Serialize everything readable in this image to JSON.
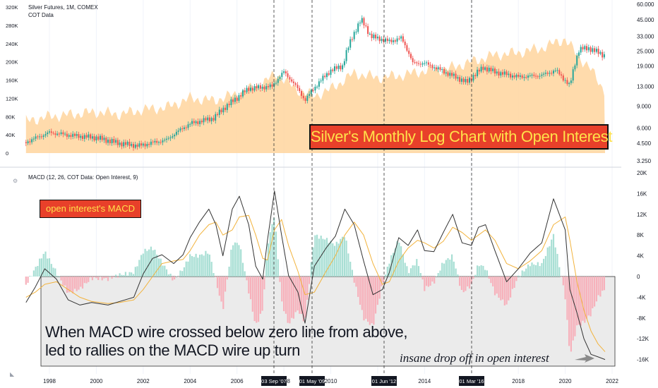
{
  "header": {
    "symbol": "Silver Futures, 1M, COMEX",
    "indicator": "COT Data",
    "macd_label": "MACD (12, 26, COT Data: Open Interest, 9)"
  },
  "annotations": {
    "title_box": "Silver's Monthly Log Chart with Open Interest",
    "macd_box": "open interest's MACD",
    "note_line1": "When MACD wire crossed below zero line from above,",
    "note_line2": "led to rallies on the MACD wire up turn",
    "drop_note": "insane drop off in open interest"
  },
  "chart_data": [
    {
      "type": "area",
      "title": "Silver Futures, 1M, COMEX",
      "series": [
        {
          "name": "COT Data",
          "x": [
            1997.0,
            1998.0,
            1999.0,
            2000.0,
            2001.0,
            2002.0,
            2003.0,
            2004.0,
            2005.0,
            2006.0,
            2007.0,
            2007.7,
            2008.5,
            2009.3,
            2010.0,
            2011.0,
            2012.0,
            2013.0,
            2014.0,
            2015.0,
            2016.0,
            2017.0,
            2018.0,
            2019.0,
            2020.0,
            2020.5,
            2021.0,
            2021.7
          ],
          "values": [
            70000,
            80000,
            85000,
            90000,
            85000,
            95000,
            100000,
            120000,
            115000,
            130000,
            150000,
            175000,
            140000,
            125000,
            140000,
            175000,
            165000,
            170000,
            180000,
            185000,
            200000,
            215000,
            220000,
            230000,
            250000,
            215000,
            190000,
            135000
          ]
        }
      ],
      "yticks_left": [
        "320K",
        "280K",
        "240K",
        "200K",
        "160K",
        "120K",
        "80K",
        "40K",
        "0"
      ],
      "ylim_left": [
        0,
        320000
      ],
      "price_scale": "log",
      "yticks_right": [
        "60.000",
        "45.000",
        "33.000",
        "25.000",
        "19.000",
        "13.000",
        "9.000",
        "6.000",
        "4.500",
        "3.250"
      ],
      "ylim_right": [
        3.25,
        60
      ],
      "price_path": {
        "name": "Silver Futures, 1M, COMEX",
        "x": [
          1997.0,
          1998.0,
          1999.0,
          2000.0,
          2001.0,
          2001.8,
          2003.0,
          2004.0,
          2005.0,
          2006.0,
          2006.5,
          2007.5,
          2008.0,
          2008.9,
          2009.5,
          2010.0,
          2010.5,
          2011.3,
          2011.7,
          2012.5,
          2013.0,
          2013.5,
          2014.0,
          2015.0,
          2015.8,
          2016.5,
          2017.0,
          2018.0,
          2019.0,
          2019.6,
          2020.2,
          2020.6,
          2021.0,
          2021.7
        ],
        "values": [
          4.6,
          5.5,
          5.2,
          5.0,
          4.5,
          4.3,
          4.8,
          6.5,
          7.2,
          10.5,
          12.5,
          13.0,
          17.0,
          10.0,
          14.0,
          17.5,
          19.0,
          45.0,
          33.0,
          30.0,
          32.0,
          20.0,
          20.0,
          16.5,
          14.0,
          18.5,
          17.0,
          15.5,
          16.0,
          17.5,
          13.0,
          26.0,
          26.5,
          23.0
        ]
      },
      "xticks": [
        "1998",
        "2000",
        "2002",
        "2004",
        "2006",
        "2008",
        "2010",
        "2012",
        "2014",
        "2016",
        "2018",
        "2020",
        "2022"
      ]
    },
    {
      "type": "line",
      "title": "MACD (12, 26, COT Data: Open Interest, 9)",
      "ylim": [
        -16000,
        20000
      ],
      "yticks": [
        "20K",
        "16K",
        "12K",
        "8K",
        "4K",
        "0",
        "-4K",
        "-8K",
        "-12K",
        "-16K"
      ],
      "x": [
        1997.0,
        1997.4,
        1997.8,
        1998.3,
        1998.8,
        1999.3,
        1999.8,
        2000.5,
        2001.0,
        2001.6,
        2002.0,
        2002.4,
        2002.8,
        2003.3,
        2003.7,
        2004.0,
        2004.4,
        2004.8,
        2005.1,
        2005.4,
        2005.8,
        2006.1,
        2006.5,
        2006.8,
        2007.1,
        2007.3,
        2007.6,
        2007.9,
        2008.2,
        2008.6,
        2008.9,
        2009.3,
        2009.8,
        2010.2,
        2010.6,
        2011.0,
        2011.4,
        2011.8,
        2012.2,
        2012.5,
        2012.9,
        2013.3,
        2013.7,
        2014.0,
        2014.4,
        2014.8,
        2015.2,
        2015.6,
        2016.0,
        2016.3,
        2016.6,
        2017.0,
        2017.5,
        2018.0,
        2018.5,
        2019.0,
        2019.5,
        2020.0,
        2020.2,
        2020.5,
        2020.8,
        2021.1,
        2021.4,
        2021.7
      ],
      "series": [
        {
          "name": "MACD",
          "values": [
            -5000,
            -2000,
            1500,
            -500,
            -4500,
            -5500,
            -5000,
            -5500,
            -4800,
            -4000,
            500,
            3500,
            4200,
            2500,
            4200,
            7500,
            10500,
            13000,
            10000,
            4000,
            13000,
            15500,
            10000,
            2000,
            -500,
            7000,
            16500,
            8000,
            200,
            -3000,
            -9000,
            2000,
            5500,
            7800,
            13000,
            10000,
            3000,
            -3500,
            -2500,
            800,
            7500,
            6000,
            9000,
            5000,
            4800,
            8500,
            12000,
            6500,
            6000,
            9500,
            10000,
            5000,
            -1000,
            1500,
            4500,
            6500,
            15000,
            9000,
            -2500,
            -7000,
            -12000,
            -15000,
            -15500,
            -16000
          ]
        },
        {
          "name": "Signal",
          "values": [
            -4000,
            -3000,
            -1500,
            -1000,
            -2500,
            -4000,
            -4800,
            -5200,
            -5000,
            -4500,
            -2500,
            0,
            2500,
            3000,
            3300,
            5000,
            8000,
            10000,
            10500,
            8000,
            9000,
            11500,
            11800,
            8000,
            3500,
            3200,
            9000,
            11000,
            6000,
            1000,
            -3500,
            -3000,
            1000,
            4000,
            8000,
            10500,
            8000,
            2500,
            -1500,
            -1000,
            3000,
            5500,
            7000,
            6500,
            5500,
            6800,
            9500,
            8500,
            7000,
            8000,
            9000,
            7000,
            2500,
            1500,
            3000,
            5000,
            10000,
            11500,
            7000,
            -1000,
            -6500,
            -10500,
            -13000,
            -14500
          ]
        }
      ]
    }
  ],
  "date_markers": [
    "03 Sep '07",
    "01 May '09",
    "01 Jun '12",
    "01 Mar '16"
  ]
}
